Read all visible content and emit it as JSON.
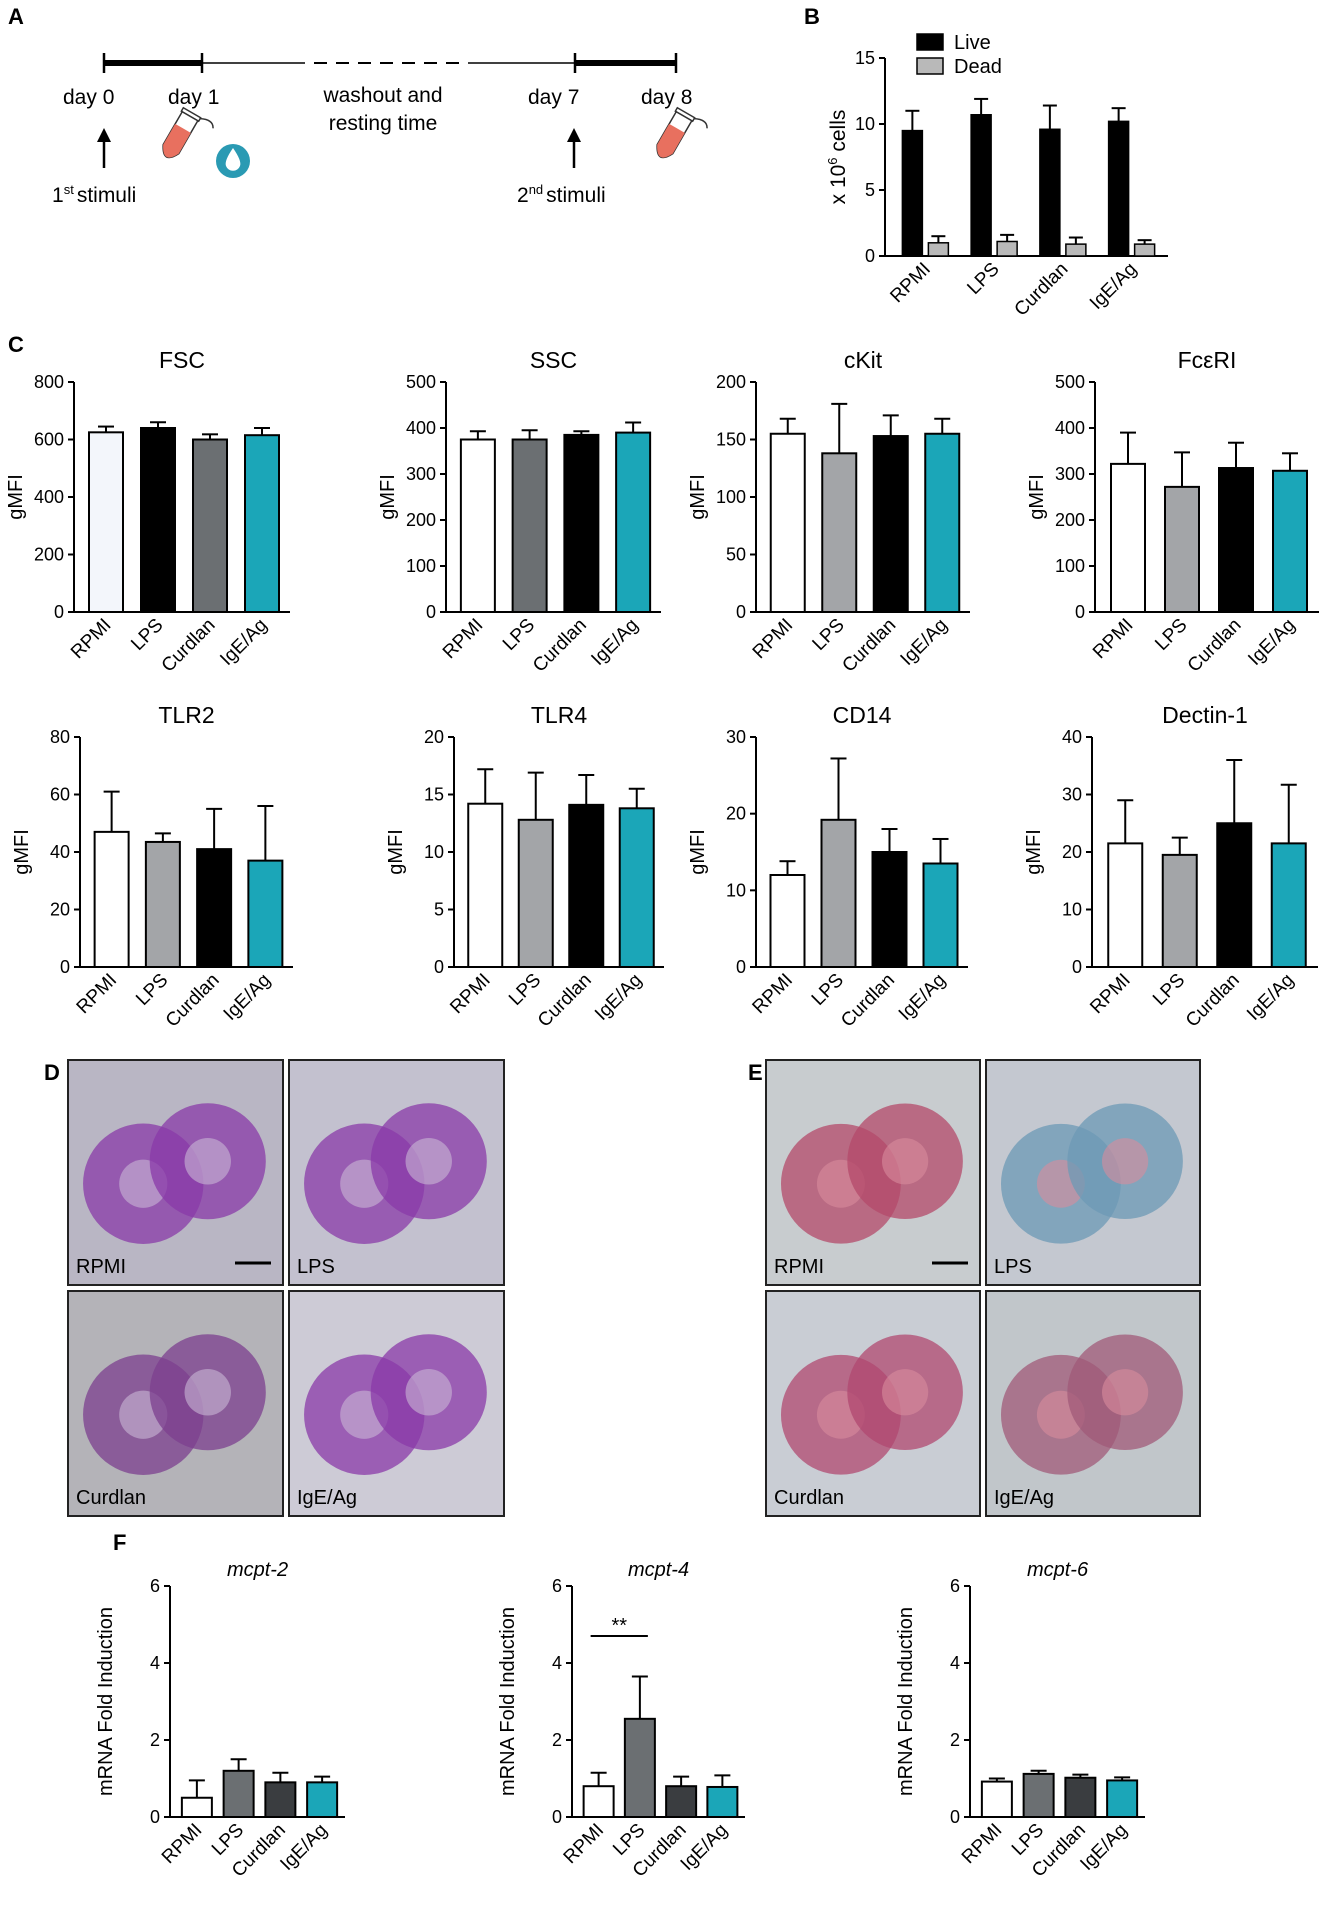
{
  "panels": {
    "A": {
      "letter": "A",
      "labels": {
        "day0": "day 0",
        "day1": "day 1",
        "washout_line1": "washout and",
        "washout_line2": "resting time",
        "day7": "day 7",
        "day8": "day 8",
        "stim1_sup": "st",
        "stim1_prefix": "1",
        "stim1_suffix": "stimuli",
        "stim2_sup": "nd",
        "stim2_prefix": "2",
        "stim2_suffix": "stimuli"
      }
    },
    "B": {
      "letter": "B"
    },
    "C": {
      "letter": "C"
    },
    "D": {
      "letter": "D",
      "images": [
        "RPMI",
        "LPS",
        "Curdlan",
        "IgE/Ag"
      ],
      "stain_color": "#7a3a9a"
    },
    "E": {
      "letter": "E",
      "images": [
        "RPMI",
        "LPS",
        "Curdlan",
        "IgE/Ag"
      ],
      "stain_color": "#c04060"
    },
    "F": {
      "letter": "F"
    }
  },
  "colors": {
    "RPMI": "#ffffff",
    "LPS": "#a3a5a8",
    "Curdlan": "#000000",
    "IgE/Ag": "#1ba6b8",
    "F_LPS": "#6b6f72",
    "F_Curdlan": "#3a3d40",
    "live": "#000000",
    "dead": "#b9b9b9"
  },
  "chart_data": [
    {
      "id": "B",
      "type": "bar",
      "title": "",
      "ylabel": "x 10^6 cells",
      "ylabel_main": "x 10",
      "ylabel_sup": "6",
      "ylabel_tail": " cells",
      "categories": [
        "RPMI",
        "LPS",
        "Curdlan",
        "IgE/Ag"
      ],
      "series": [
        {
          "name": "Live",
          "values": [
            9.5,
            10.7,
            9.6,
            10.2
          ],
          "errors": [
            1.5,
            1.2,
            1.8,
            1.0
          ]
        },
        {
          "name": "Dead",
          "values": [
            1.0,
            1.1,
            0.9,
            0.9
          ],
          "errors": [
            0.5,
            0.5,
            0.5,
            0.3
          ]
        }
      ],
      "ylim": [
        0,
        15
      ],
      "yticks": [
        0,
        5,
        10,
        15
      ],
      "legend_placement": "top"
    },
    {
      "id": "C1",
      "type": "bar",
      "title": "FSC",
      "ylabel": "gMFI",
      "categories": [
        "RPMI",
        "LPS",
        "Curdlan",
        "IgE/Ag"
      ],
      "values": [
        625,
        640,
        600,
        615
      ],
      "errors": [
        20,
        20,
        18,
        25
      ],
      "ylim": [
        0,
        800
      ],
      "yticks": [
        0,
        200,
        400,
        600,
        800
      ],
      "bar_colors": [
        "#f3f6fb",
        "#000000",
        "#6b6f72",
        "#1ba6b8"
      ]
    },
    {
      "id": "C2",
      "type": "bar",
      "title": "SSC",
      "ylabel": "gMFI",
      "categories": [
        "RPMI",
        "LPS",
        "Curdlan",
        "IgE/Ag"
      ],
      "values": [
        375,
        375,
        385,
        390
      ],
      "errors": [
        18,
        20,
        8,
        22
      ],
      "ylim": [
        0,
        500
      ],
      "yticks": [
        0,
        100,
        200,
        300,
        400,
        500
      ],
      "bar_colors": [
        "#ffffff",
        "#6b6f72",
        "#000000",
        "#1ba6b8"
      ]
    },
    {
      "id": "C3",
      "type": "bar",
      "title": "cKit",
      "ylabel": "gMFI",
      "categories": [
        "RPMI",
        "LPS",
        "Curdlan",
        "IgE/Ag"
      ],
      "values": [
        155,
        138,
        153,
        155
      ],
      "errors": [
        13,
        43,
        18,
        13
      ],
      "ylim": [
        0,
        200
      ],
      "yticks": [
        0,
        50,
        100,
        150,
        200
      ],
      "bar_colors": [
        "#ffffff",
        "#a3a5a8",
        "#000000",
        "#1ba6b8"
      ]
    },
    {
      "id": "C4",
      "type": "bar",
      "title": "FcεRI",
      "ylabel": "gMFI",
      "categories": [
        "RPMI",
        "LPS",
        "Curdlan",
        "IgE/Ag"
      ],
      "values": [
        322,
        272,
        313,
        307
      ],
      "errors": [
        68,
        75,
        55,
        38
      ],
      "ylim": [
        0,
        500
      ],
      "yticks": [
        0,
        100,
        200,
        300,
        400,
        500
      ],
      "bar_colors": [
        "#ffffff",
        "#a3a5a8",
        "#000000",
        "#1ba6b8"
      ]
    },
    {
      "id": "C5",
      "type": "bar",
      "title": "TLR2",
      "ylabel": "gMFI",
      "categories": [
        "RPMI",
        "LPS",
        "Curdlan",
        "IgE/Ag"
      ],
      "values": [
        47,
        43.5,
        41,
        37
      ],
      "errors": [
        14,
        3,
        14,
        19
      ],
      "ylim": [
        0,
        80
      ],
      "yticks": [
        0,
        20,
        40,
        60,
        80
      ],
      "bar_colors": [
        "#ffffff",
        "#a3a5a8",
        "#000000",
        "#1ba6b8"
      ]
    },
    {
      "id": "C6",
      "type": "bar",
      "title": "TLR4",
      "ylabel": "gMFI",
      "categories": [
        "RPMI",
        "LPS",
        "Curdlan",
        "IgE/Ag"
      ],
      "values": [
        14.2,
        12.8,
        14.1,
        13.8
      ],
      "errors": [
        3.0,
        4.1,
        2.6,
        1.7
      ],
      "ylim": [
        0,
        20
      ],
      "yticks": [
        0,
        5,
        10,
        15,
        20
      ],
      "bar_colors": [
        "#ffffff",
        "#a3a5a8",
        "#000000",
        "#1ba6b8"
      ]
    },
    {
      "id": "C7",
      "type": "bar",
      "title": "CD14",
      "ylabel": "gMFI",
      "categories": [
        "RPMI",
        "LPS",
        "Curdlan",
        "IgE/Ag"
      ],
      "values": [
        12,
        19.2,
        15,
        13.5
      ],
      "errors": [
        1.8,
        8,
        3,
        3.2
      ],
      "ylim": [
        0,
        30
      ],
      "yticks": [
        0,
        10,
        20,
        30
      ],
      "bar_colors": [
        "#ffffff",
        "#a3a5a8",
        "#000000",
        "#1ba6b8"
      ]
    },
    {
      "id": "C8",
      "type": "bar",
      "title": "Dectin-1",
      "ylabel": "gMFI",
      "categories": [
        "RPMI",
        "LPS",
        "Curdlan",
        "IgE/Ag"
      ],
      "values": [
        21.5,
        19.5,
        25,
        21.5
      ],
      "errors": [
        7.5,
        3,
        11,
        10.2
      ],
      "ylim": [
        0,
        40
      ],
      "yticks": [
        0,
        10,
        20,
        30,
        40
      ],
      "bar_colors": [
        "#ffffff",
        "#a3a5a8",
        "#000000",
        "#1ba6b8"
      ]
    },
    {
      "id": "F1",
      "type": "bar",
      "title": "mcpt-2",
      "ylabel": "mRNA Fold Induction",
      "categories": [
        "RPMI",
        "LPS",
        "Curdlan",
        "IgE/Ag"
      ],
      "values": [
        0.5,
        1.2,
        0.9,
        0.9
      ],
      "errors": [
        0.45,
        0.3,
        0.25,
        0.15
      ],
      "ylim": [
        0,
        6
      ],
      "yticks": [
        0,
        2,
        4,
        6
      ],
      "bar_colors": [
        "#ffffff",
        "#6b6f72",
        "#3a3d40",
        "#1ba6b8"
      ]
    },
    {
      "id": "F2",
      "type": "bar",
      "title": "mcpt-4",
      "ylabel": "mRNA Fold Induction",
      "categories": [
        "RPMI",
        "LPS",
        "Curdlan",
        "IgE/Ag"
      ],
      "values": [
        0.8,
        2.55,
        0.8,
        0.78
      ],
      "errors": [
        0.35,
        1.1,
        0.25,
        0.3
      ],
      "ylim": [
        0,
        6
      ],
      "yticks": [
        0,
        2,
        4,
        6
      ],
      "bar_colors": [
        "#ffffff",
        "#6b6f72",
        "#3a3d40",
        "#1ba6b8"
      ],
      "annotation": "**"
    },
    {
      "id": "F3",
      "type": "bar",
      "title": "mcpt-6",
      "ylabel": "mRNA Fold Induction",
      "categories": [
        "RPMI",
        "LPS",
        "Curdlan",
        "IgE/Ag"
      ],
      "values": [
        0.92,
        1.12,
        1.02,
        0.95
      ],
      "errors": [
        0.08,
        0.08,
        0.08,
        0.08
      ],
      "ylim": [
        0,
        6
      ],
      "yticks": [
        0,
        2,
        4,
        6
      ],
      "bar_colors": [
        "#ffffff",
        "#6b6f72",
        "#3a3d40",
        "#1ba6b8"
      ]
    }
  ]
}
